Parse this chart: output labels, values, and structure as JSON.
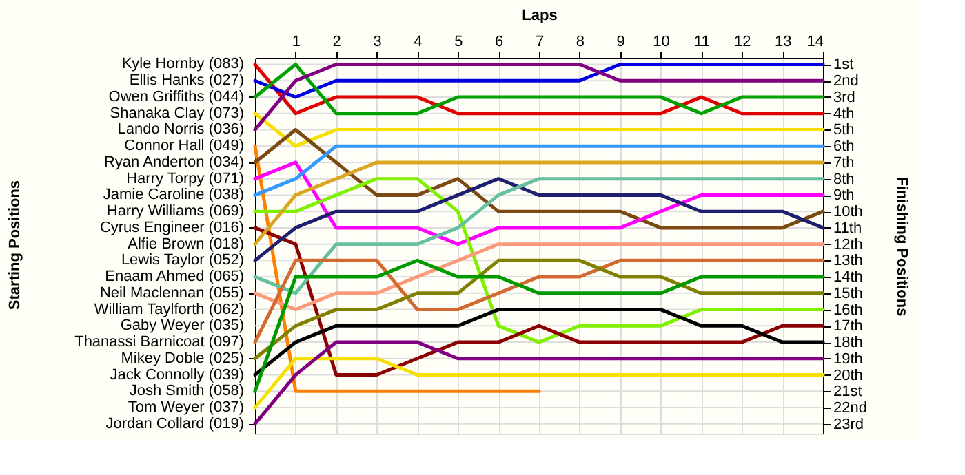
{
  "chart_data": {
    "type": "line",
    "xlabel": "Laps",
    "ylabel": "Finishing Positions",
    "grid": true,
    "x": [
      0,
      1,
      2,
      3,
      4,
      5,
      6,
      7,
      8,
      9,
      10,
      11,
      12,
      13,
      14
    ],
    "xlim": [
      0,
      14
    ],
    "xticks": [
      1,
      2,
      3,
      4,
      5,
      6,
      7,
      8,
      9,
      10,
      11,
      12,
      13,
      14
    ],
    "ylim": [
      23.6,
      0.6
    ],
    "yticks": [
      {
        "value": 1,
        "label": "1st"
      },
      {
        "value": 2,
        "label": "2nd"
      },
      {
        "value": 3,
        "label": "3rd"
      },
      {
        "value": 4,
        "label": "4th"
      },
      {
        "value": 5,
        "label": "5th"
      },
      {
        "value": 6,
        "label": "6th"
      },
      {
        "value": 7,
        "label": "7th"
      },
      {
        "value": 8,
        "label": "8th"
      },
      {
        "value": 9,
        "label": "9th"
      },
      {
        "value": 10,
        "label": "10th"
      },
      {
        "value": 11,
        "label": "11th"
      },
      {
        "value": 12,
        "label": "12th"
      },
      {
        "value": 13,
        "label": "13th"
      },
      {
        "value": 14,
        "label": "14th"
      },
      {
        "value": 15,
        "label": "15th"
      },
      {
        "value": 16,
        "label": "16th"
      },
      {
        "value": 17,
        "label": "17th"
      },
      {
        "value": 18,
        "label": "18th"
      },
      {
        "value": 19,
        "label": "19th"
      },
      {
        "value": 20,
        "label": "20th"
      },
      {
        "value": 21,
        "label": "21st"
      },
      {
        "value": 22,
        "label": "22nd"
      },
      {
        "value": 23,
        "label": "23rd"
      }
    ],
    "annotations": [
      "Starting Positions",
      "Kyle Hornby (083)",
      "Ellis Hanks (027)",
      "Owen Griffiths (044)",
      "Shanaka Clay (073)",
      "Lando Norris (036)",
      "Connor Hall (049)",
      "Ryan Anderton (034)",
      "Harry Torpy (071)",
      "Jamie Caroline (038)",
      "Harry Williams (069)",
      "Cyrus Engineer (016)",
      "Alfie Brown (018)",
      "Lewis Taylor (052)",
      "Enaam Ahmed (065)",
      "Neil Maclennan (055)",
      "William Taylforth (062)",
      "Gaby Weyer (035)",
      "Thanassi Barnicoat (097)",
      "Mikey Doble (025)",
      "Jack Connolly (039)",
      "Josh Smith (058)",
      "Tom Weyer (037)",
      "Jordan Collard (019)"
    ],
    "series": [
      {
        "color": "#e00000",
        "values": [
          1,
          4,
          3,
          3,
          3,
          4,
          4,
          4,
          4,
          4,
          4,
          3,
          4,
          4,
          4
        ]
      },
      {
        "color": "#0000e0",
        "values": [
          2,
          3,
          2,
          2,
          2,
          2,
          2,
          2,
          2,
          1,
          1,
          1,
          1,
          1,
          1
        ]
      },
      {
        "color": "#00a000",
        "values": [
          3,
          1,
          4,
          4,
          4,
          3,
          3,
          3,
          3,
          3,
          3,
          4,
          3,
          3,
          3
        ]
      },
      {
        "color": "#f5e000",
        "values": [
          4,
          6,
          5,
          5,
          5,
          5,
          5,
          5,
          5,
          5,
          5,
          5,
          5,
          5,
          5
        ]
      },
      {
        "color": "#800080",
        "values": [
          5,
          2,
          1,
          1,
          1,
          1,
          1,
          1,
          1,
          2,
          2,
          2,
          2,
          2,
          2
        ]
      },
      {
        "color": "#ff8000",
        "values": [
          6,
          21,
          21,
          21,
          21,
          21,
          21,
          21,
          null,
          null,
          null,
          null,
          null,
          null,
          null
        ]
      },
      {
        "color": "#7b4a12",
        "values": [
          7,
          5,
          7,
          9,
          9,
          8,
          10,
          10,
          10,
          10,
          11,
          11,
          11,
          11,
          10
        ]
      },
      {
        "color": "#ff00ff",
        "values": [
          8,
          7,
          11,
          11,
          11,
          12,
          11,
          11,
          11,
          11,
          10,
          9,
          9,
          9,
          9
        ]
      },
      {
        "color": "#3399ff",
        "values": [
          9,
          8,
          6,
          6,
          6,
          6,
          6,
          6,
          6,
          6,
          6,
          6,
          6,
          6,
          6
        ]
      },
      {
        "color": "#80f000",
        "values": [
          10,
          10,
          9,
          8,
          8,
          10,
          17,
          18,
          17,
          17,
          17,
          16,
          16,
          16,
          16
        ]
      },
      {
        "color": "#8b0000",
        "values": [
          11,
          12,
          20,
          20,
          19,
          18,
          18,
          17,
          18,
          18,
          18,
          18,
          18,
          17,
          17
        ]
      },
      {
        "color": "#daa520",
        "values": [
          12,
          9,
          8,
          7,
          7,
          7,
          7,
          7,
          7,
          7,
          7,
          7,
          7,
          7,
          7
        ]
      },
      {
        "color": "#1f1f70",
        "values": [
          13,
          11,
          10,
          10,
          10,
          9,
          8,
          9,
          9,
          9,
          9,
          10,
          10,
          10,
          11
        ]
      },
      {
        "color": "#66c0a0",
        "values": [
          14,
          15,
          12,
          12,
          12,
          11,
          9,
          8,
          8,
          8,
          8,
          8,
          8,
          8,
          8
        ]
      },
      {
        "color": "#fa9a7a",
        "values": [
          15,
          16,
          15,
          15,
          14,
          13,
          12,
          12,
          12,
          12,
          12,
          12,
          12,
          12,
          12
        ]
      },
      {
        "color": "#d06a30",
        "values": [
          18,
          13,
          13,
          13,
          16,
          16,
          15,
          14,
          14,
          13,
          13,
          13,
          13,
          13,
          13
        ]
      },
      {
        "color": "#808000",
        "values": [
          19,
          17,
          16,
          16,
          15,
          15,
          13,
          13,
          13,
          14,
          14,
          15,
          15,
          15,
          15
        ]
      },
      {
        "color": "#000000",
        "values": [
          20,
          18,
          17,
          17,
          17,
          17,
          16,
          16,
          16,
          16,
          16,
          17,
          17,
          18,
          18
        ]
      },
      {
        "color": "#009900",
        "values": [
          21,
          14,
          14,
          14,
          13,
          14,
          14,
          15,
          15,
          15,
          15,
          14,
          14,
          14,
          14
        ]
      },
      {
        "color": "#f5e000",
        "values": [
          22,
          19,
          19,
          19,
          20,
          20,
          20,
          20,
          20,
          20,
          20,
          20,
          20,
          20,
          20
        ]
      },
      {
        "color": "#800080",
        "values": [
          23,
          20,
          18,
          18,
          18,
          19,
          19,
          19,
          19,
          19,
          19,
          19,
          19,
          19,
          19
        ]
      }
    ]
  }
}
